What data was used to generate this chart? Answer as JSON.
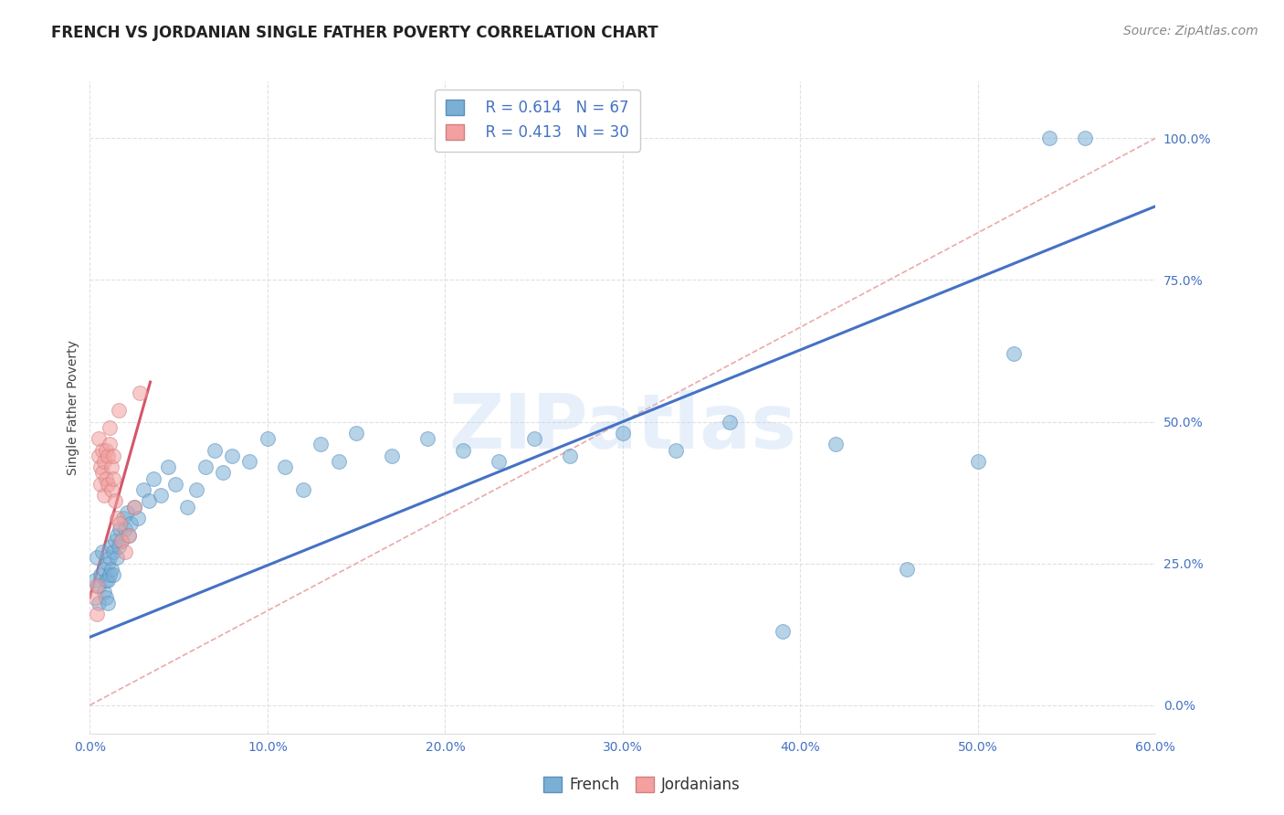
{
  "title": "FRENCH VS JORDANIAN SINGLE FATHER POVERTY CORRELATION CHART",
  "source": "Source: ZipAtlas.com",
  "ylabel": "Single Father Poverty",
  "watermark": "ZIPatlas",
  "xlim": [
    0.0,
    0.6
  ],
  "ylim": [
    -0.05,
    1.1
  ],
  "xtick_values": [
    0.0,
    0.1,
    0.2,
    0.3,
    0.4,
    0.5,
    0.6
  ],
  "xtick_labels": [
    "0.0%",
    "10.0%",
    "20.0%",
    "30.0%",
    "40.0%",
    "50.0%",
    "60.0%"
  ],
  "ytick_values": [
    0.0,
    0.25,
    0.5,
    0.75,
    1.0
  ],
  "ytick_labels": [
    "0.0%",
    "25.0%",
    "50.0%",
    "75.0%",
    "100.0%"
  ],
  "french_R": 0.614,
  "french_N": 67,
  "jordanian_R": 0.413,
  "jordanian_N": 30,
  "french_color": "#7BAFD4",
  "jordanian_color": "#F4A0A0",
  "french_edge_color": "#5B8FBF",
  "jordanian_edge_color": "#D08080",
  "french_line_color": "#4472C4",
  "jordanian_line_color": "#D4566A",
  "diag_color": "#E8A0A0",
  "background_color": "#FFFFFF",
  "grid_color": "#DDDDDD",
  "tick_color": "#4472C4",
  "title_fontsize": 12,
  "axis_label_fontsize": 10,
  "tick_fontsize": 10,
  "legend_fontsize": 12,
  "source_fontsize": 10,
  "french_trendline_x": [
    0.0,
    0.6
  ],
  "french_trendline_y": [
    0.12,
    0.88
  ],
  "jordanian_trendline_x": [
    0.0,
    0.034
  ],
  "jordanian_trendline_y": [
    0.19,
    0.57
  ],
  "diag_line_x": [
    0.0,
    0.6
  ],
  "diag_line_y": [
    0.0,
    1.0
  ],
  "french_scatter_x": [
    0.003,
    0.004,
    0.005,
    0.005,
    0.006,
    0.007,
    0.008,
    0.008,
    0.009,
    0.009,
    0.01,
    0.01,
    0.01,
    0.011,
    0.011,
    0.012,
    0.012,
    0.013,
    0.013,
    0.014,
    0.015,
    0.015,
    0.016,
    0.017,
    0.018,
    0.019,
    0.02,
    0.021,
    0.022,
    0.023,
    0.025,
    0.027,
    0.03,
    0.033,
    0.036,
    0.04,
    0.044,
    0.048,
    0.055,
    0.06,
    0.065,
    0.07,
    0.075,
    0.08,
    0.09,
    0.1,
    0.11,
    0.12,
    0.13,
    0.14,
    0.15,
    0.17,
    0.19,
    0.21,
    0.23,
    0.25,
    0.27,
    0.3,
    0.33,
    0.36,
    0.39,
    0.42,
    0.46,
    0.5,
    0.52,
    0.54,
    0.56
  ],
  "french_scatter_y": [
    0.22,
    0.26,
    0.21,
    0.18,
    0.23,
    0.27,
    0.24,
    0.2,
    0.22,
    0.19,
    0.25,
    0.22,
    0.18,
    0.26,
    0.23,
    0.28,
    0.24,
    0.27,
    0.23,
    0.29,
    0.3,
    0.26,
    0.28,
    0.31,
    0.29,
    0.33,
    0.31,
    0.34,
    0.3,
    0.32,
    0.35,
    0.33,
    0.38,
    0.36,
    0.4,
    0.37,
    0.42,
    0.39,
    0.35,
    0.38,
    0.42,
    0.45,
    0.41,
    0.44,
    0.43,
    0.47,
    0.42,
    0.38,
    0.46,
    0.43,
    0.48,
    0.44,
    0.47,
    0.45,
    0.43,
    0.47,
    0.44,
    0.48,
    0.45,
    0.5,
    0.13,
    0.46,
    0.24,
    0.43,
    0.62,
    1.0,
    1.0
  ],
  "jordanian_scatter_x": [
    0.003,
    0.004,
    0.004,
    0.005,
    0.005,
    0.006,
    0.006,
    0.007,
    0.007,
    0.008,
    0.008,
    0.009,
    0.009,
    0.01,
    0.01,
    0.011,
    0.011,
    0.012,
    0.012,
    0.013,
    0.013,
    0.014,
    0.015,
    0.016,
    0.017,
    0.018,
    0.02,
    0.022,
    0.025,
    0.028
  ],
  "jordanian_scatter_y": [
    0.19,
    0.21,
    0.16,
    0.44,
    0.47,
    0.42,
    0.39,
    0.45,
    0.41,
    0.43,
    0.37,
    0.45,
    0.4,
    0.44,
    0.39,
    0.49,
    0.46,
    0.42,
    0.38,
    0.44,
    0.4,
    0.36,
    0.33,
    0.52,
    0.32,
    0.29,
    0.27,
    0.3,
    0.35,
    0.55
  ]
}
